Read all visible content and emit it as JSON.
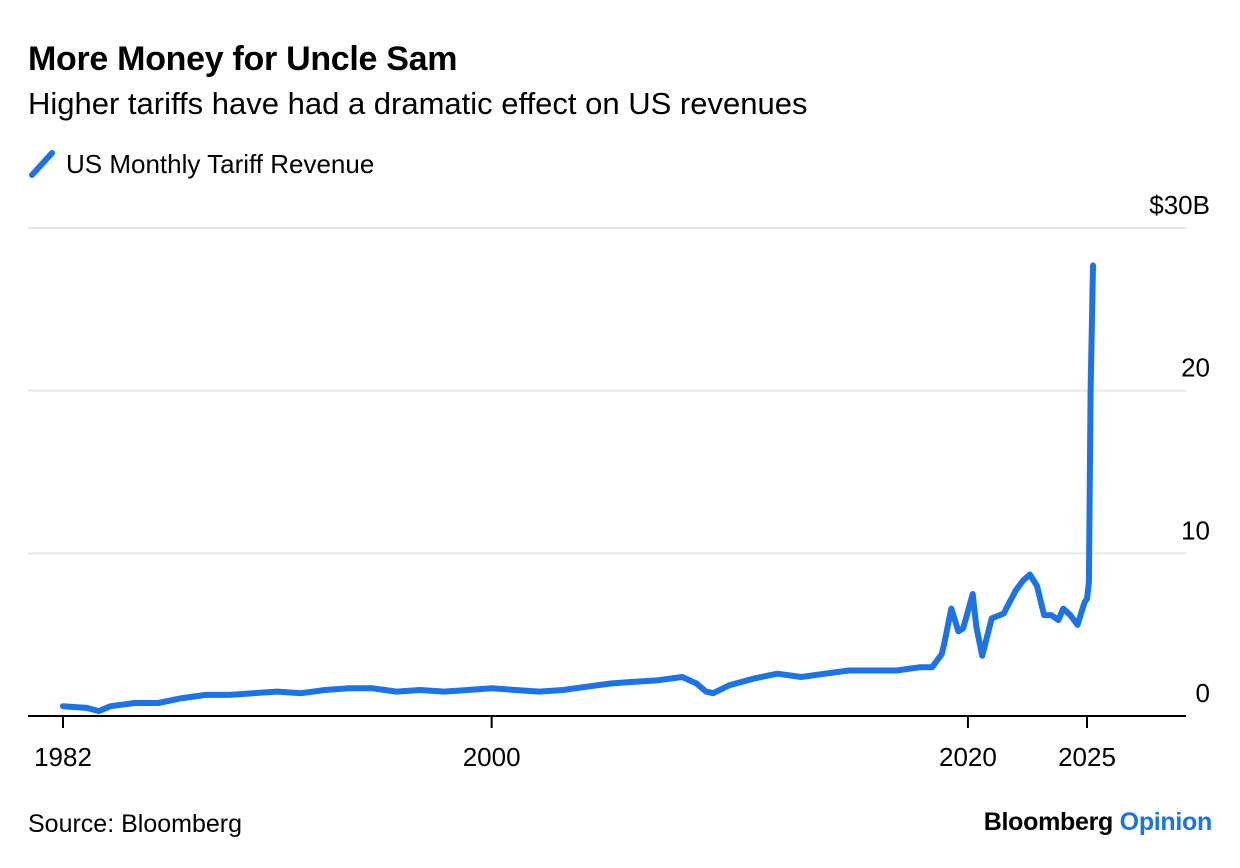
{
  "header": {
    "title": "More Money for Uncle Sam",
    "subtitle": "Higher tariffs have had a dramatic effect on US revenues"
  },
  "legend": {
    "label": "US Monthly Tariff Revenue",
    "color": "#1a73e8"
  },
  "footer": {
    "source": "Source: Bloomberg",
    "brand_main": "Bloomberg",
    "brand_sub": "Opinion"
  },
  "chart_data": {
    "type": "line",
    "title": "More Money for Uncle Sam",
    "subtitle": "Higher tariffs have had a dramatic effect on US revenues",
    "xlabel": "",
    "ylabel": "",
    "x_ticks": [
      "1982",
      "2000",
      "2020",
      "2025"
    ],
    "x_tick_values": [
      1982,
      2000,
      2020,
      2025
    ],
    "y_ticks": [
      "0",
      "10",
      "20",
      "$30B"
    ],
    "y_tick_values": [
      0,
      10,
      20,
      30
    ],
    "ylim": [
      0,
      30
    ],
    "xlim": [
      1982,
      2027
    ],
    "grid": true,
    "legend_position": "top-left",
    "color": "#1a73e8",
    "series": [
      {
        "name": "US Monthly Tariff Revenue",
        "x": [
          1982.0,
          1983.0,
          1983.5,
          1984.0,
          1985.0,
          1986.0,
          1987.0,
          1988.0,
          1989.0,
          1990.0,
          1991.0,
          1992.0,
          1993.0,
          1994.0,
          1995.0,
          1996.0,
          1997.0,
          1998.0,
          1999.0,
          2000.0,
          2001.0,
          2002.0,
          2003.0,
          2004.0,
          2005.0,
          2006.0,
          2007.0,
          2008.0,
          2008.6,
          2009.0,
          2009.3,
          2010.0,
          2011.0,
          2012.0,
          2013.0,
          2014.0,
          2015.0,
          2016.0,
          2017.0,
          2018.0,
          2018.5,
          2018.9,
          2019.0,
          2019.3,
          2019.6,
          2019.8,
          2020.2,
          2020.35,
          2020.6,
          2021.0,
          2021.5,
          2022.0,
          2022.3,
          2022.6,
          2022.9,
          2023.2,
          2023.5,
          2023.8,
          2024.0,
          2024.3,
          2024.6,
          2024.9,
          2025.0,
          2025.08,
          2025.15,
          2025.25
        ],
        "y": [
          0.6,
          0.5,
          0.3,
          0.6,
          0.8,
          0.8,
          1.1,
          1.3,
          1.3,
          1.4,
          1.5,
          1.4,
          1.6,
          1.7,
          1.7,
          1.5,
          1.6,
          1.5,
          1.6,
          1.7,
          1.6,
          1.5,
          1.6,
          1.8,
          2.0,
          2.1,
          2.2,
          2.4,
          2.0,
          1.5,
          1.4,
          1.9,
          2.3,
          2.6,
          2.4,
          2.6,
          2.8,
          2.8,
          2.8,
          3.0,
          3.0,
          3.8,
          4.4,
          6.6,
          5.2,
          5.4,
          7.5,
          5.5,
          3.7,
          6.0,
          6.3,
          7.7,
          8.3,
          8.7,
          8.0,
          6.2,
          6.2,
          5.9,
          6.6,
          6.2,
          5.6,
          7.0,
          7.2,
          8.2,
          20.0,
          27.7
        ]
      }
    ]
  }
}
